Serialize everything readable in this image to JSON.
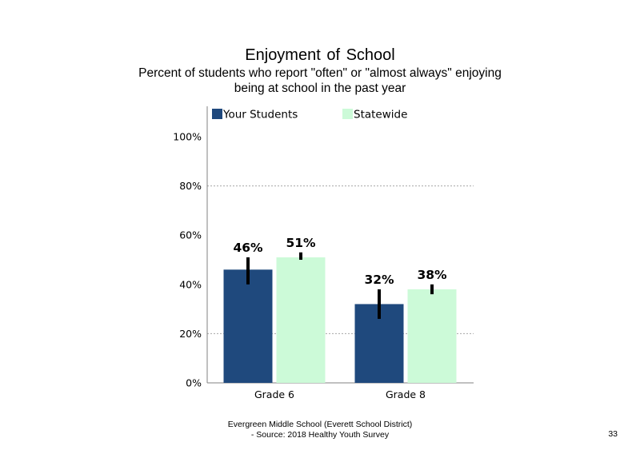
{
  "title": "Enjoyment  of School",
  "subtitle": "Percent of students  who report \"often\" or \"almost  always\" enjoying\nbeing at school in the past year",
  "footer": "Evergreen Middle  School (Everett School District)\n- Source: 2018 Healthy  Youth Survey",
  "page_number": "33",
  "chart_data": {
    "type": "bar",
    "categories": [
      "Grade 6",
      "Grade 8"
    ],
    "series": [
      {
        "name": "Your Students",
        "color": "#1f497d",
        "values": [
          46,
          32
        ],
        "labels": [
          "46%",
          "32%"
        ],
        "error": [
          [
            40,
            51
          ],
          [
            26,
            38
          ]
        ]
      },
      {
        "name": "Statewide",
        "color": "#ccfad8",
        "values": [
          51,
          38
        ],
        "labels": [
          "51%",
          "38%"
        ],
        "error": [
          [
            50,
            53
          ],
          [
            36,
            40
          ]
        ]
      }
    ],
    "ylim": [
      0,
      110
    ],
    "yticks": [
      0,
      20,
      40,
      60,
      80,
      100
    ],
    "ytick_labels": [
      "0%",
      "20%",
      "40%",
      "60%",
      "80%",
      "100%"
    ],
    "grid": "dotted horizontal at 20% and 80%",
    "legend_position": "top"
  }
}
